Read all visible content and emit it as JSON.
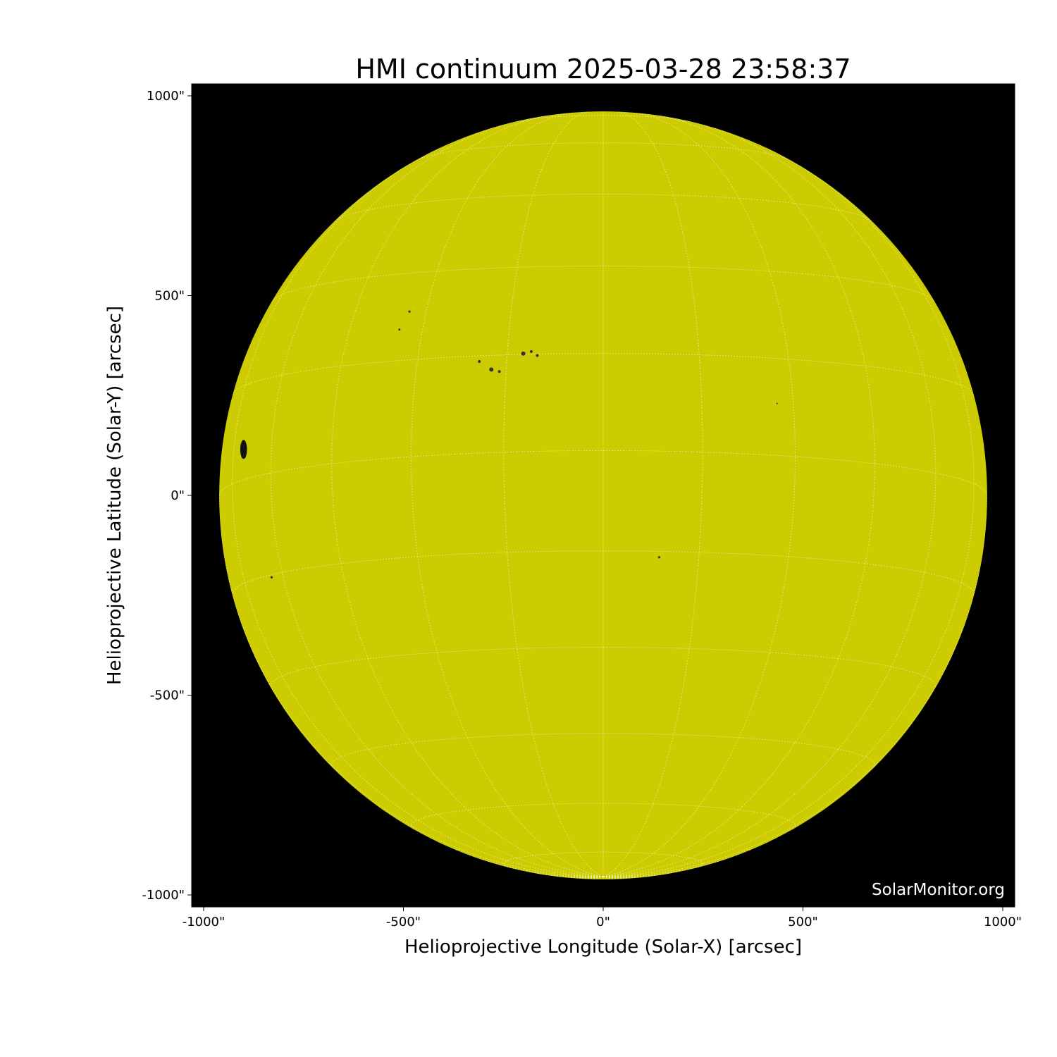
{
  "chart_data": {
    "type": "heatmap",
    "title": "HMI continuum 2025-03-28 23:58:37",
    "xlabel": "Helioprojective Longitude (Solar-X) [arcsec]",
    "ylabel": "Helioprojective Latitude (Solar-Y) [arcsec]",
    "xlim": [
      -1030,
      1030
    ],
    "ylim": [
      -1030,
      1030
    ],
    "xticks": [
      -1000,
      -500,
      0,
      500,
      1000
    ],
    "yticks": [
      -1000,
      -500,
      0,
      500,
      1000
    ],
    "xtick_labels": [
      "-1000\"",
      "-500\"",
      "0\"",
      "500\"",
      "1000\""
    ],
    "ytick_labels": [
      "-1000\"",
      "-500\"",
      "0\"",
      "500\"",
      "1000\""
    ],
    "solar_radius_arcsec": 961,
    "grid": true,
    "grid_spacing_deg": 15,
    "b0_deg": -6.7,
    "colors": {
      "disk": "#cccc00",
      "background": "#000000",
      "grid": "#ffffff"
    },
    "sunspots": [
      {
        "x": -900,
        "y": 115,
        "size": 3
      },
      {
        "x": -310,
        "y": 335,
        "size": 1
      },
      {
        "x": -280,
        "y": 315,
        "size": 1.5
      },
      {
        "x": -260,
        "y": 310,
        "size": 1
      },
      {
        "x": -200,
        "y": 355,
        "size": 1.5
      },
      {
        "x": -180,
        "y": 360,
        "size": 1
      },
      {
        "x": -165,
        "y": 350,
        "size": 1
      },
      {
        "x": -485,
        "y": 460,
        "size": 0.8
      },
      {
        "x": -510,
        "y": 415,
        "size": 0.7
      },
      {
        "x": 140,
        "y": -155,
        "size": 0.8
      },
      {
        "x": -830,
        "y": -205,
        "size": 0.8
      },
      {
        "x": 435,
        "y": 230,
        "size": 0.5
      }
    ]
  },
  "watermark": "SolarMonitor.org"
}
